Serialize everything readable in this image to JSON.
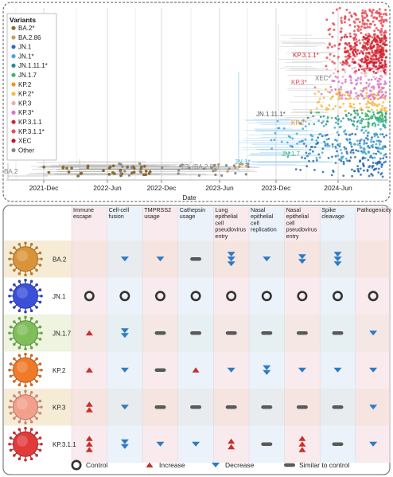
{
  "tree": {
    "legend_title": "Variants",
    "legend": [
      {
        "label": "BA.2*",
        "color": "#8b6a2e"
      },
      {
        "label": "BA.2.86",
        "color": "#c8a05a"
      },
      {
        "label": "JN.1",
        "color": "#2c6fb0"
      },
      {
        "label": "JN.1*",
        "color": "#46a9d9"
      },
      {
        "label": "JN.1.11.1*",
        "color": "#2a8f86"
      },
      {
        "label": "JN.1.7",
        "color": "#3db56a"
      },
      {
        "label": "KP.2",
        "color": "#f0962a"
      },
      {
        "label": "KP.2*",
        "color": "#f5b945"
      },
      {
        "label": "KP.3",
        "color": "#f0a8b8"
      },
      {
        "label": "KP.3*",
        "color": "#d77ac8"
      },
      {
        "label": "KP.3.1.1",
        "color": "#d0262e"
      },
      {
        "label": "KP.3.1.1*",
        "color": "#e8505a"
      },
      {
        "label": "XEC",
        "color": "#c8102e"
      },
      {
        "label": "Other",
        "color": "#8a8a8a"
      }
    ],
    "x_ticks": [
      "2021-Dec",
      "2022-Jun",
      "2022-Dec",
      "2023-Jun",
      "2023-Dec",
      "2024-Jun"
    ],
    "x_label": "Date",
    "annotations": [
      {
        "text": "BA.2",
        "color": "#888888"
      },
      {
        "text": "23I (BA.2.86)",
        "color": "#888888"
      },
      {
        "text": "JN.1*",
        "color": "#46a9d9"
      },
      {
        "text": "JN.1.7",
        "color": "#3db56a"
      },
      {
        "text": "JN.1.11.1*",
        "color": "#555555"
      },
      {
        "text": "KP.2*",
        "color": "#f0962a"
      },
      {
        "text": "KP.3*",
        "color": "#e8505a"
      },
      {
        "text": "XEC*",
        "color": "#777777"
      },
      {
        "text": "KP.3.1.1*",
        "color": "#d0262e"
      }
    ]
  },
  "matrix": {
    "columns": [
      {
        "label": "Immune\nescape",
        "tint": "#f7e1e6"
      },
      {
        "label": "Cell-cell\nfusion",
        "tint": "#e2edf8"
      },
      {
        "label": "TMPRSS2\nusage",
        "tint": "#f7e1e6"
      },
      {
        "label": "Cathepsin\nusage",
        "tint": "#e2edf8"
      },
      {
        "label": "Lung\nepithelial\ncell\npseudovirus\nentry",
        "tint": "#f7e1e6"
      },
      {
        "label": "Nasal\nepithelial\ncell\nreplication",
        "tint": "#e2edf8"
      },
      {
        "label": "Nasal\nepithelial\ncell\npseudovirus\nentry",
        "tint": "#f7e1e6"
      },
      {
        "label": "Spike\ncleavage",
        "tint": "#e2edf8"
      },
      {
        "label": "Pathogenicity",
        "tint": "#f7e1e6"
      }
    ],
    "rows": [
      {
        "label": "BA.2",
        "color": "#d9943a",
        "band": "#f6ecd6",
        "cells": [
          [
            null,
            0
          ],
          [
            "dec",
            1
          ],
          [
            "dec",
            1
          ],
          [
            "sim",
            1
          ],
          [
            "dec",
            3
          ],
          [
            "dec",
            1
          ],
          [
            "dec",
            2
          ],
          [
            "dec",
            3
          ],
          [
            null,
            0
          ]
        ]
      },
      {
        "label": "JN.1",
        "color": "#3b4fd8",
        "band": "#ffffff",
        "cells": [
          [
            "ctrl",
            1
          ],
          [
            "ctrl",
            1
          ],
          [
            "ctrl",
            1
          ],
          [
            "ctrl",
            1
          ],
          [
            "ctrl",
            1
          ],
          [
            "ctrl",
            1
          ],
          [
            "ctrl",
            1
          ],
          [
            "ctrl",
            1
          ],
          [
            "ctrl",
            1
          ]
        ]
      },
      {
        "label": "JN.1.7",
        "color": "#7fbf5a",
        "band": "#eef4df",
        "cells": [
          [
            "inc",
            1
          ],
          [
            "dec",
            2
          ],
          [
            "sim",
            1
          ],
          [
            "sim",
            1
          ],
          [
            "sim",
            1
          ],
          [
            "sim",
            1
          ],
          [
            "sim",
            1
          ],
          [
            "sim",
            1
          ],
          [
            "dec",
            1
          ]
        ]
      },
      {
        "label": "KP.2",
        "color": "#f07a2a",
        "band": "#ffffff",
        "cells": [
          [
            "inc",
            1
          ],
          [
            "dec",
            1
          ],
          [
            "sim",
            1
          ],
          [
            "inc",
            1
          ],
          [
            "dec",
            1
          ],
          [
            "dec",
            2
          ],
          [
            "dec",
            1
          ],
          [
            "dec",
            1
          ],
          [
            "dec",
            1
          ]
        ]
      },
      {
        "label": "KP.3",
        "color": "#f2a08c",
        "band": "#f6ecd6",
        "cells": [
          [
            "inc",
            2
          ],
          [
            "dec",
            1
          ],
          [
            "sim",
            1
          ],
          [
            "sim",
            1
          ],
          [
            "sim",
            1
          ],
          [
            "sim",
            1
          ],
          [
            "sim",
            1
          ],
          [
            "sim",
            1
          ],
          [
            "dec",
            1
          ]
        ]
      },
      {
        "label": "KP.3.1.1",
        "color": "#e03a3a",
        "band": "#ffffff",
        "cells": [
          [
            "inc",
            3
          ],
          [
            "dec",
            2
          ],
          [
            "dec",
            1
          ],
          [
            "dec",
            1
          ],
          [
            "inc",
            2
          ],
          [
            "sim",
            1
          ],
          [
            "inc",
            3
          ],
          [
            "sim",
            1
          ],
          [
            "dec",
            1
          ]
        ]
      }
    ],
    "legend": [
      {
        "key": "ctrl",
        "label": "Control"
      },
      {
        "key": "inc",
        "label": "Increase"
      },
      {
        "key": "dec",
        "label": "Decrease"
      },
      {
        "key": "sim",
        "label": "Similar to control"
      }
    ],
    "symbol_colors": {
      "ctrl": "#333333",
      "inc": "#c8302a",
      "dec": "#2c7bc4",
      "sim": "#5a5a5a"
    }
  }
}
